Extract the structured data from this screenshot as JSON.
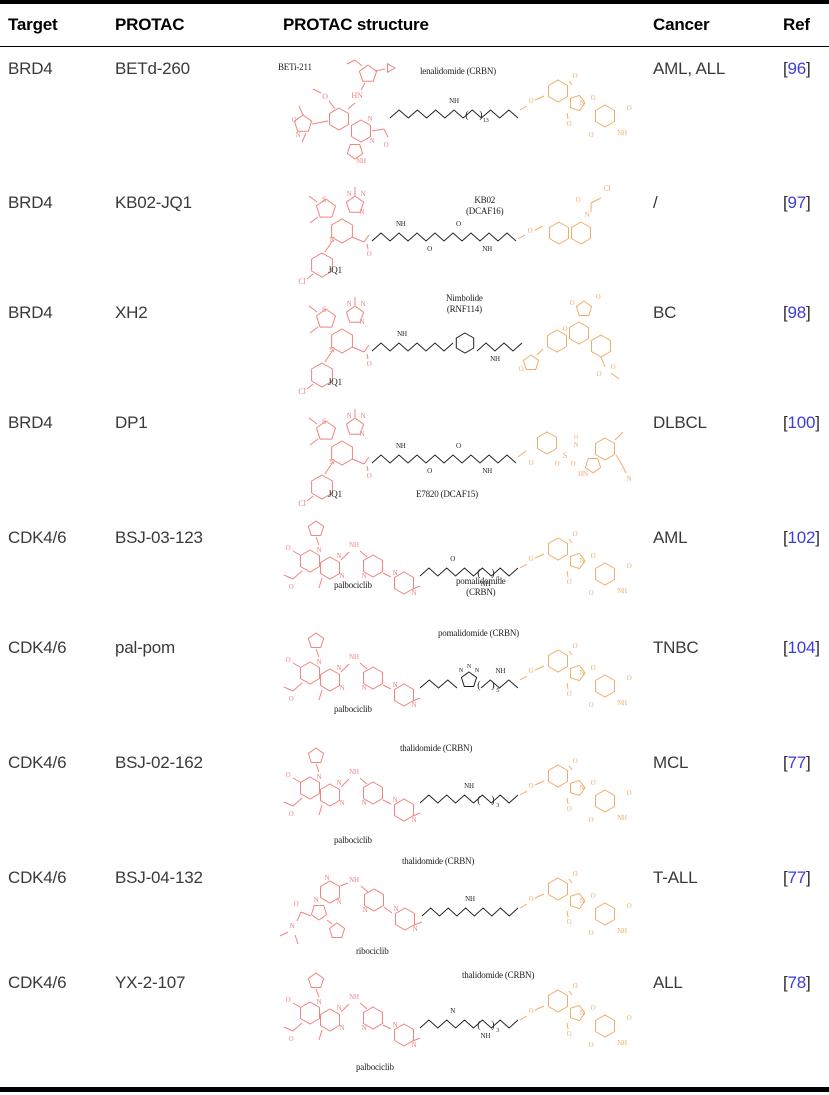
{
  "colors": {
    "warhead": "#ef8480",
    "e3": "#f0ad6a",
    "linker": "#222222",
    "ref_number": "#3c3ce0",
    "rule": "#000000",
    "body_text": "#3a3a3a",
    "header_text": "#000000"
  },
  "table": {
    "ref_open": "[",
    "ref_close": "]",
    "columns": [
      "Target",
      "PROTAC",
      "PROTAC structure",
      "Cancer",
      "Ref"
    ],
    "rows": [
      {
        "target": "BRD4",
        "protac": "BETd-260",
        "cancer": "AML, ALL",
        "ref_num": "96",
        "structure": {
          "warhead_label": "BETi-211",
          "e3_line1": "lenalidomide (CRBN)",
          "e3_line2": "",
          "warhead_motif": "betd260",
          "e3_motif": "imide",
          "linker_labels": [
            "NH"
          ],
          "repeat_sub": "13",
          "linker_ring": ""
        }
      },
      {
        "target": "BRD4",
        "protac": "KB02-JQ1",
        "cancer": "/",
        "ref_num": "97",
        "structure": {
          "warhead_label": "JQ1",
          "e3_line1": "KB02",
          "e3_line2": "(DCAF16)",
          "warhead_motif": "jq1",
          "e3_motif": "kb02",
          "linker_labels": [
            "NH",
            "O",
            "O",
            "NH"
          ],
          "repeat_sub": "",
          "linker_ring": ""
        }
      },
      {
        "target": "BRD4",
        "protac": "XH2",
        "cancer": "BC",
        "ref_num": "98",
        "structure": {
          "warhead_label": "JQ1",
          "e3_line1": "Nimbolide",
          "e3_line2": "(RNF114)",
          "warhead_motif": "jq1",
          "e3_motif": "nimbolide",
          "linker_labels": [
            "NH",
            "NH"
          ],
          "repeat_sub": "",
          "linker_ring": "benzene"
        }
      },
      {
        "target": "BRD4",
        "protac": "DP1",
        "cancer": "DLBCL",
        "ref_num": "100",
        "structure": {
          "warhead_label": "JQ1",
          "e3_line1": "E7820 (DCAF15)",
          "e3_line2": "",
          "warhead_motif": "jq1",
          "e3_motif": "e7820",
          "linker_labels": [
            "NH",
            "O",
            "O",
            "NH"
          ],
          "repeat_sub": "",
          "linker_ring": ""
        }
      },
      {
        "target": "CDK4/6",
        "protac": "BSJ-03-123",
        "cancer": "AML",
        "ref_num": "102",
        "structure": {
          "warhead_label": "palbociclib",
          "e3_line1": "pomalidomide",
          "e3_line2": "(CRBN)",
          "warhead_motif": "palbo",
          "e3_motif": "imide",
          "linker_labels": [
            "O",
            "NH"
          ],
          "repeat_sub": "3",
          "linker_ring": ""
        }
      },
      {
        "target": "CDK4/6",
        "protac": "pal-pom",
        "cancer": "TNBC",
        "ref_num": "104",
        "structure": {
          "warhead_label": "palbociclib",
          "e3_line1": "pomalidomide (CRBN)",
          "e3_line2": "",
          "warhead_motif": "palbo",
          "e3_motif": "imide",
          "linker_labels": [
            "NH"
          ],
          "repeat_sub": "5",
          "linker_ring": "triazole"
        }
      },
      {
        "target": "CDK4/6",
        "protac": "BSJ-02-162",
        "cancer": "MCL",
        "ref_num": "77",
        "structure": {
          "warhead_label": "palbociclib",
          "e3_line1": "thalidomide (CRBN)",
          "e3_line2": "",
          "warhead_motif": "palbo",
          "e3_motif": "imide",
          "linker_labels": [
            "NH"
          ],
          "repeat_sub": "3",
          "linker_ring": ""
        }
      },
      {
        "target": "CDK4/6",
        "protac": "BSJ-04-132",
        "cancer": "T-ALL",
        "ref_num": "77",
        "structure": {
          "warhead_label": "ribociclib",
          "e3_line1": "thalidomide (CRBN)",
          "e3_line2": "",
          "warhead_motif": "ribo",
          "e3_motif": "imide",
          "linker_labels": [
            "NH"
          ],
          "repeat_sub": "",
          "linker_ring": ""
        }
      },
      {
        "target": "CDK4/6",
        "protac": "YX-2-107",
        "cancer": "ALL",
        "ref_num": "78",
        "structure": {
          "warhead_label": "palbociclib",
          "e3_line1": "thalidomide (CRBN)",
          "e3_line2": "",
          "warhead_motif": "palbo",
          "e3_motif": "imide",
          "linker_labels": [
            "N",
            "NH"
          ],
          "repeat_sub": "3",
          "linker_ring": ""
        }
      }
    ]
  }
}
